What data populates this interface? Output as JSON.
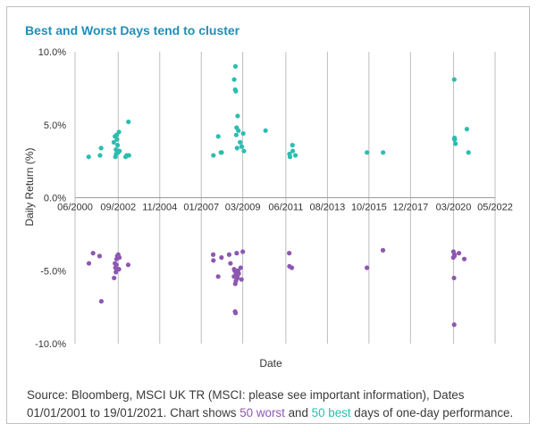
{
  "title": "Best and Worst Days tend to cluster",
  "footer": {
    "line1": "Source: Bloomberg, MSCI UK TR (MSCI: please see important information), Dates",
    "line2_prefix": "01/01/2001 to 19/01/2021. Chart shows ",
    "worst_label": "50 worst",
    "middle": " and ",
    "best_label": "50 best",
    "suffix": " days of one-day performance."
  },
  "colors": {
    "best": "#2bbdb0",
    "worst": "#8e57b1",
    "title": "#1f8fb8",
    "grid": "#bdbdbd"
  },
  "chart_data": {
    "type": "scatter",
    "xlabel": "Date",
    "ylabel": "Daily Return (%)",
    "xlim": [
      "2000-06-01",
      "2022-05-01"
    ],
    "ylim": [
      -10.0,
      10.0
    ],
    "x_ticks": [
      "06/2000",
      "09/2002",
      "11/2004",
      "01/2007",
      "03/2009",
      "06/2011",
      "08/2013",
      "10/2015",
      "12/2017",
      "03/2020",
      "05/2022"
    ],
    "y_ticks": [
      "10.0%",
      "5.0%",
      "0.0%",
      "-5.0%",
      "-10.0%"
    ],
    "grid": "vertical",
    "series": [
      {
        "name": "50 best",
        "color": "#2bbdb0",
        "points": [
          {
            "x": "2001-02-15",
            "y": 2.8
          },
          {
            "x": "2001-09-20",
            "y": 2.9
          },
          {
            "x": "2001-10-10",
            "y": 3.4
          },
          {
            "x": "2002-06-10",
            "y": 3.8
          },
          {
            "x": "2002-07-01",
            "y": 4.2
          },
          {
            "x": "2002-07-10",
            "y": 2.8
          },
          {
            "x": "2002-07-20",
            "y": 3.3
          },
          {
            "x": "2002-07-24",
            "y": 3.0
          },
          {
            "x": "2002-08-01",
            "y": 4.3
          },
          {
            "x": "2002-08-10",
            "y": 4.0
          },
          {
            "x": "2002-08-20",
            "y": 3.6
          },
          {
            "x": "2002-09-01",
            "y": 3.1
          },
          {
            "x": "2002-09-15",
            "y": 4.5
          },
          {
            "x": "2002-09-25",
            "y": 3.2
          },
          {
            "x": "2003-01-20",
            "y": 2.8
          },
          {
            "x": "2003-02-10",
            "y": 2.9
          },
          {
            "x": "2003-03-15",
            "y": 5.2
          },
          {
            "x": "2003-03-25",
            "y": 2.9
          },
          {
            "x": "2007-08-20",
            "y": 2.9
          },
          {
            "x": "2007-11-20",
            "y": 4.2
          },
          {
            "x": "2008-01-10",
            "y": 3.1
          },
          {
            "x": "2008-01-24",
            "y": 3.1
          },
          {
            "x": "2008-09-19",
            "y": 8.1
          },
          {
            "x": "2008-10-08",
            "y": 7.4
          },
          {
            "x": "2008-10-13",
            "y": 9.0
          },
          {
            "x": "2008-10-20",
            "y": 7.3
          },
          {
            "x": "2008-10-28",
            "y": 4.3
          },
          {
            "x": "2008-11-04",
            "y": 4.8
          },
          {
            "x": "2008-11-13",
            "y": 3.4
          },
          {
            "x": "2008-11-24",
            "y": 5.6
          },
          {
            "x": "2008-12-08",
            "y": 4.6
          },
          {
            "x": "2009-01-10",
            "y": 3.8
          },
          {
            "x": "2009-02-10",
            "y": 3.5
          },
          {
            "x": "2009-03-10",
            "y": 4.4
          },
          {
            "x": "2009-03-24",
            "y": 3.2
          },
          {
            "x": "2010-05-10",
            "y": 4.6
          },
          {
            "x": "2011-08-09",
            "y": 3.0
          },
          {
            "x": "2011-08-18",
            "y": 2.8
          },
          {
            "x": "2011-10-04",
            "y": 3.6
          },
          {
            "x": "2011-10-10",
            "y": 3.2
          },
          {
            "x": "2011-11-30",
            "y": 2.9
          },
          {
            "x": "2015-08-25",
            "y": 3.1
          },
          {
            "x": "2016-06-27",
            "y": 3.1
          },
          {
            "x": "2020-03-13",
            "y": 8.1
          },
          {
            "x": "2020-03-17",
            "y": 4.0
          },
          {
            "x": "2020-03-24",
            "y": 4.0
          },
          {
            "x": "2020-04-06",
            "y": 3.7
          },
          {
            "x": "2020-11-09",
            "y": 4.7
          },
          {
            "x": "2020-12-10",
            "y": 3.1
          },
          {
            "x": "2020-03-18",
            "y": 4.1
          }
        ]
      },
      {
        "name": "50 worst",
        "color": "#8e57b1",
        "points": [
          {
            "x": "2001-02-20",
            "y": -4.5
          },
          {
            "x": "2001-05-10",
            "y": -3.8
          },
          {
            "x": "2001-09-11",
            "y": -4.0
          },
          {
            "x": "2001-10-15",
            "y": -7.1
          },
          {
            "x": "2002-06-15",
            "y": -5.5
          },
          {
            "x": "2002-07-01",
            "y": -4.5
          },
          {
            "x": "2002-07-10",
            "y": -4.8
          },
          {
            "x": "2002-07-19",
            "y": -5.1
          },
          {
            "x": "2002-08-01",
            "y": -4.2
          },
          {
            "x": "2002-08-15",
            "y": -4.0
          },
          {
            "x": "2002-09-01",
            "y": -3.9
          },
          {
            "x": "2002-09-15",
            "y": -4.9
          },
          {
            "x": "2002-09-24",
            "y": -4.1
          },
          {
            "x": "2003-03-10",
            "y": -4.6
          },
          {
            "x": "2007-08-16",
            "y": -3.9
          },
          {
            "x": "2007-08-20",
            "y": -4.3
          },
          {
            "x": "2007-11-19",
            "y": -5.4
          },
          {
            "x": "2008-01-21",
            "y": -4.1
          },
          {
            "x": "2008-06-15",
            "y": -3.9
          },
          {
            "x": "2008-07-10",
            "y": -4.5
          },
          {
            "x": "2008-09-15",
            "y": -5.4
          },
          {
            "x": "2008-09-29",
            "y": -5.0
          },
          {
            "x": "2008-10-06",
            "y": -7.8
          },
          {
            "x": "2008-10-10",
            "y": -5.9
          },
          {
            "x": "2008-10-15",
            "y": -7.9
          },
          {
            "x": "2008-10-22",
            "y": -5.7
          },
          {
            "x": "2008-10-24",
            "y": -5.2
          },
          {
            "x": "2008-11-06",
            "y": -3.8
          },
          {
            "x": "2008-11-19",
            "y": -5.5
          },
          {
            "x": "2008-12-01",
            "y": -5.0
          },
          {
            "x": "2009-01-20",
            "y": -4.8
          },
          {
            "x": "2009-02-05",
            "y": -5.6
          },
          {
            "x": "2009-03-02",
            "y": -3.7
          },
          {
            "x": "2011-08-04",
            "y": -3.8
          },
          {
            "x": "2011-08-08",
            "y": -4.7
          },
          {
            "x": "2011-09-22",
            "y": -4.8
          },
          {
            "x": "2015-08-24",
            "y": -4.8
          },
          {
            "x": "2016-06-24",
            "y": -3.6
          },
          {
            "x": "2020-03-09",
            "y": -5.5
          },
          {
            "x": "2020-03-12",
            "y": -8.7
          },
          {
            "x": "2020-02-27",
            "y": -3.7
          },
          {
            "x": "2020-03-16",
            "y": -4.0
          },
          {
            "x": "2020-03-18",
            "y": -3.9
          },
          {
            "x": "2020-06-11",
            "y": -3.8
          },
          {
            "x": "2020-02-24",
            "y": -4.1
          },
          {
            "x": "2020-09-21",
            "y": -4.2
          },
          {
            "x": "2008-09-18",
            "y": -4.9
          },
          {
            "x": "2008-11-14",
            "y": -5.4
          },
          {
            "x": "2008-12-15",
            "y": -5.2
          },
          {
            "x": "2002-07-29",
            "y": -4.6
          }
        ]
      }
    ]
  }
}
